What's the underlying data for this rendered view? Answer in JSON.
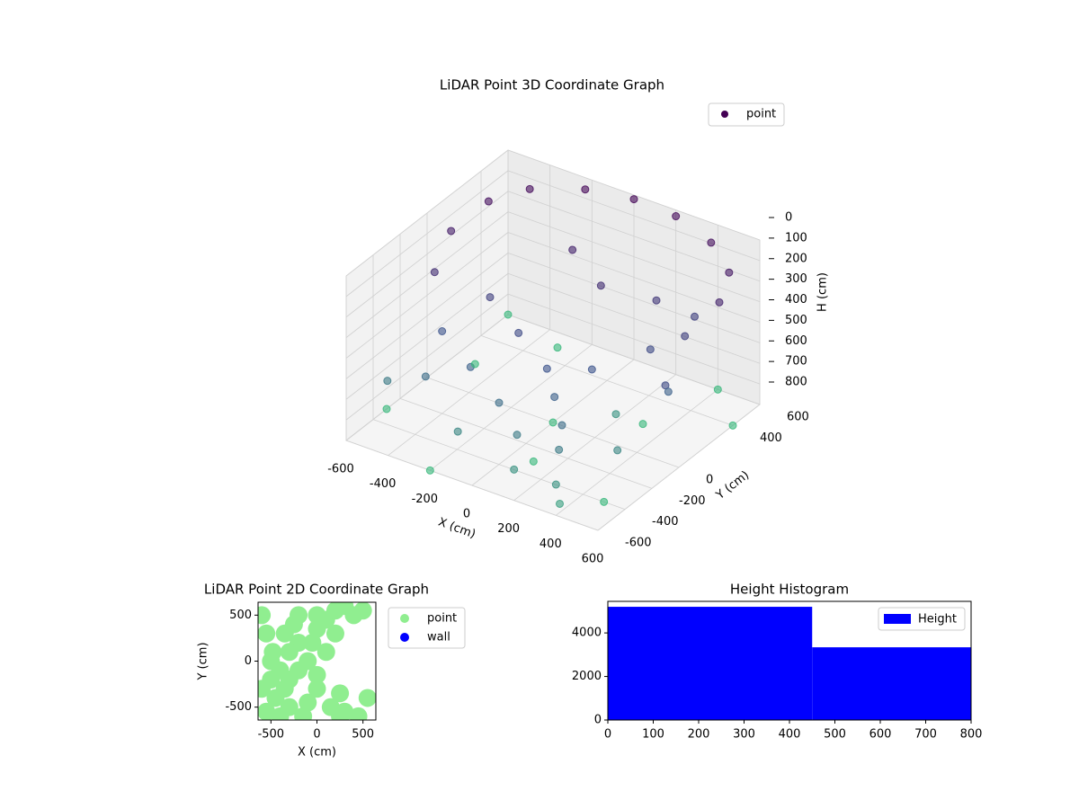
{
  "chart_data": [
    {
      "type": "scatter3d",
      "title": "LiDAR Point 3D Coordinate Graph",
      "xlabel": "X (cm)",
      "ylabel": "Y (cm)",
      "zlabel": "H (cm)",
      "series": [
        {
          "name": "point",
          "color": "#440154",
          "x": [
            -500,
            -400,
            -200,
            0,
            200,
            400,
            550,
            600,
            -550,
            -500,
            -300,
            -100,
            100,
            200,
            300,
            350,
            -400,
            -200,
            0,
            150,
            400,
            500,
            300,
            450,
            100,
            -100,
            600,
            550,
            250,
            -350,
            -500,
            400,
            450,
            200,
            -100,
            500,
            300,
            -600,
            -500,
            -200,
            100,
            300,
            500,
            600,
            -300,
            0,
            400,
            -600
          ],
          "y": [
            300,
            450,
            550,
            600,
            600,
            550,
            450,
            300,
            100,
            -100,
            0,
            -100,
            -200,
            -300,
            -400,
            -500,
            -200,
            -300,
            -400,
            -500,
            100,
            200,
            300,
            350,
            200,
            300,
            -100,
            0,
            -100,
            -400,
            -450,
            -600,
            -650,
            -600,
            -550,
            -300,
            0,
            -300,
            200,
            -600,
            -300,
            200,
            -400,
            400,
            500,
            0,
            600,
            600
          ],
          "h": [
            60,
            40,
            20,
            20,
            30,
            60,
            100,
            150,
            120,
            200,
            300,
            350,
            400,
            450,
            500,
            550,
            400,
            450,
            500,
            550,
            350,
            300,
            250,
            300,
            200,
            150,
            350,
            450,
            400,
            500,
            550,
            650,
            700,
            650,
            600,
            600,
            650,
            800,
            800,
            800,
            800,
            800,
            800,
            800,
            800,
            800,
            800,
            800
          ]
        }
      ],
      "xlim": [
        -600,
        600
      ],
      "ylim": [
        -600,
        600
      ],
      "zlim": [
        800,
        0
      ],
      "xticks": [
        -600,
        -400,
        -200,
        0,
        200,
        400,
        600
      ],
      "yticks": [
        -600,
        -400,
        -200,
        0,
        400,
        600
      ],
      "zticks": [
        0,
        100,
        200,
        300,
        400,
        500,
        600,
        700,
        800
      ],
      "legend": "upper right"
    },
    {
      "type": "scatter",
      "title": "LiDAR Point 2D Coordinate Graph",
      "xlabel": "X (cm)",
      "ylabel": "Y (cm)",
      "series": [
        {
          "name": "point",
          "color": "#90ee90",
          "x": [
            -600,
            -550,
            -480,
            -400,
            -350,
            -300,
            -250,
            -200,
            -100,
            0,
            100,
            200,
            300,
            -550,
            -450,
            -300,
            -150,
            0,
            150,
            300,
            -500,
            -350,
            -200,
            -50,
            100,
            250,
            -400,
            -200,
            0,
            200,
            400,
            500,
            -600,
            -300,
            0,
            450,
            550,
            -500,
            -100,
            250
          ],
          "y": [
            500,
            300,
            100,
            -100,
            -300,
            -500,
            400,
            200,
            0,
            500,
            450,
            550,
            600,
            -550,
            -400,
            -200,
            -600,
            -300,
            -500,
            -550,
            0,
            300,
            -100,
            200,
            100,
            -600,
            -600,
            500,
            350,
            300,
            500,
            550,
            -300,
            100,
            -150,
            -600,
            -400,
            -200,
            -450,
            -350
          ]
        },
        {
          "name": "wall",
          "color": "#0000ff",
          "x": [],
          "y": []
        }
      ],
      "xlim": [
        -640,
        640
      ],
      "ylim": [
        -640,
        640
      ],
      "xticks": [
        -500,
        0,
        500
      ],
      "yticks": [
        -500,
        0,
        500
      ],
      "legend": "outside right"
    },
    {
      "type": "histogram",
      "title": "Height Histogram",
      "name": "Height",
      "color": "#0000ff",
      "bins": [
        0,
        450,
        800
      ],
      "counts": [
        5200,
        3340
      ],
      "xlim": [
        0,
        800
      ],
      "ylim": [
        0,
        5450
      ],
      "xticks": [
        0,
        100,
        200,
        300,
        400,
        500,
        600,
        700,
        800
      ],
      "yticks": [
        0,
        2000,
        4000
      ],
      "legend": "upper right"
    }
  ]
}
